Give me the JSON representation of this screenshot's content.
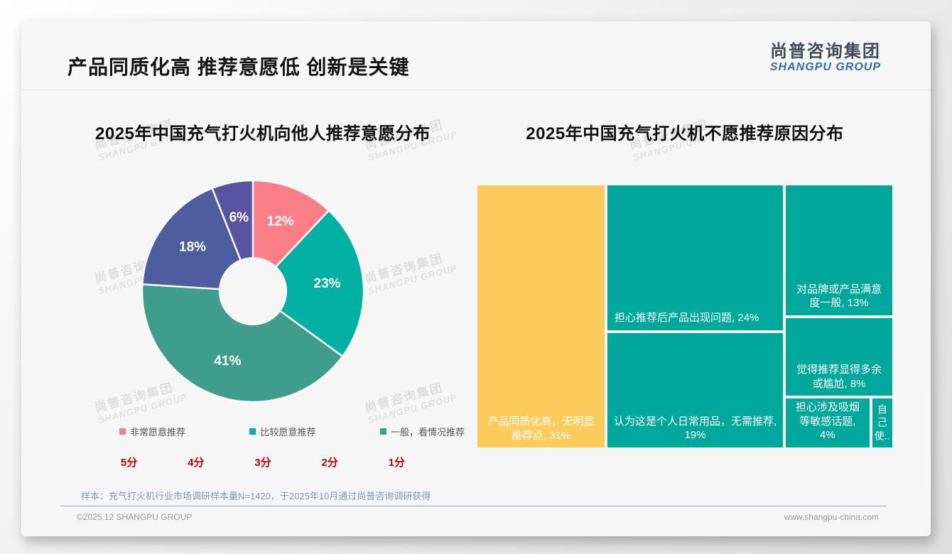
{
  "page": {
    "title": "产品同质化高 推荐意愿低 创新是关键",
    "logo": {
      "cn": "尚普咨询集团",
      "en": "SHANGPU GROUP"
    },
    "watermark": {
      "cn": "尚普咨询集团",
      "en": "SHANGPU GROUP"
    },
    "footnote": "样本：充气打火机行业市场调研样本量N=1420，于2025年10月通过尚普咨询调研获得",
    "footer": {
      "left": "©2025.12 SHANGPU GROUP",
      "right": "www.shangpu-china.com"
    }
  },
  "chart_data": [
    {
      "type": "pie",
      "subtype": "donut",
      "title": "2025年中国充气打火机向他人推荐意愿分布",
      "values": [
        12,
        23,
        41,
        18,
        6
      ],
      "labels": [
        "12%",
        "23%",
        "41%",
        "18%",
        "6%"
      ],
      "colors": [
        "#F97E87",
        "#00B1A3",
        "#3F9E8B",
        "#4D5DA0",
        "#5A53A4"
      ],
      "start_angle_deg": 0,
      "direction": "clockwise",
      "inner_radius_ratio": 0.3,
      "legend_position": "bottom",
      "legend": [
        {
          "label": "非常愿意推荐",
          "color": "#F97E87"
        },
        {
          "label": "比较愿意推荐",
          "color": "#00B1A3"
        },
        {
          "label": "一般，看情况推荐",
          "color": "#3F9E8B"
        }
      ],
      "score_axis": [
        "5分",
        "4分",
        "3分",
        "2分",
        "1分"
      ],
      "score_color": "#C00000"
    },
    {
      "type": "treemap",
      "title": "2025年中国充气打火机不愿推荐原因分布",
      "text_color": "#FFFFFF",
      "items": [
        {
          "label": "产品同质化高，无明显推荐点",
          "value": 31,
          "lines": [
            "产品同质化高，无明显",
            "推荐点, 31%"
          ],
          "color": "#FBCB5C"
        },
        {
          "label": "担心推荐后产品出现问题",
          "value": 24,
          "lines": [
            "担心推荐后产品出现问题, 24%"
          ],
          "color": "#00A79B"
        },
        {
          "label": "认为这是个人日常用品，无需推荐",
          "value": 19,
          "lines": [
            "认为这是个人日常用品，无需推荐,",
            "19%"
          ],
          "color": "#00A79B"
        },
        {
          "label": "对品牌或产品满意度一般",
          "value": 13,
          "lines": [
            "对品牌或产品满意",
            "度一般, 13%"
          ],
          "color": "#00A79B"
        },
        {
          "label": "觉得推荐显得多余或尴尬",
          "value": 8,
          "lines": [
            "觉得推荐显得多余",
            "或尴尬, 8%"
          ],
          "color": "#00A79B"
        },
        {
          "label": "担心涉及吸烟等敏感话题",
          "value": 4,
          "lines": [
            "担心涉及吸烟",
            "等敏感话题,",
            "4%"
          ],
          "color": "#00A79B"
        },
        {
          "label": "自己使..",
          "value": 1,
          "lines": [
            "自己使.."
          ],
          "color": "#00A79B"
        }
      ]
    }
  ]
}
